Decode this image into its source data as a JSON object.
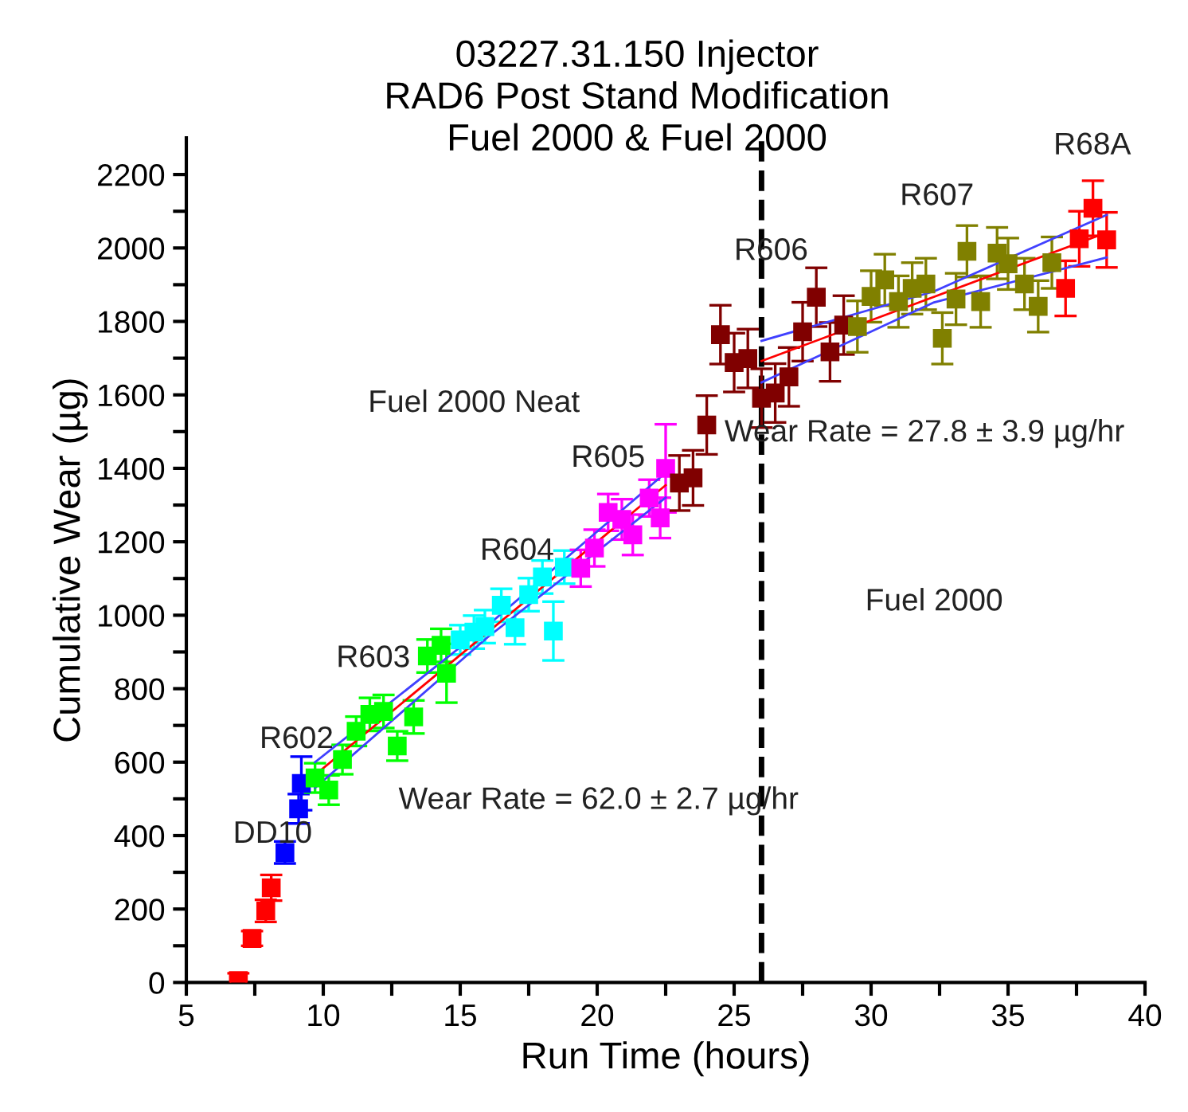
{
  "chart_data": {
    "type": "scatter",
    "title": "03227.31.150 Injector\nRAD6 Post Stand Modification\nFuel 2000 & Fuel 2000",
    "xlabel": "Run Time (hours)",
    "ylabel": "Cumulative Wear (µg)",
    "marker": "square",
    "grid": false,
    "legend": false,
    "xlim": [
      5,
      40
    ],
    "ylim": [
      0,
      2300
    ],
    "xticks": [
      5,
      {
        "value": 7.5,
        "label": null
      },
      10,
      {
        "value": 12.5,
        "label": null
      },
      15,
      {
        "value": 17.5,
        "label": null
      },
      20,
      {
        "value": 22.5,
        "label": null
      },
      25,
      {
        "value": 27.5,
        "label": null
      },
      30,
      {
        "value": 32.5,
        "label": null
      },
      35,
      {
        "value": 37.5,
        "label": null
      },
      40
    ],
    "yticks": [
      0,
      {
        "value": 100,
        "label": null
      },
      200,
      {
        "value": 300,
        "label": null
      },
      400,
      {
        "value": 500,
        "label": null
      },
      600,
      {
        "value": 700,
        "label": null
      },
      800,
      {
        "value": 900,
        "label": null
      },
      1000,
      {
        "value": 1100,
        "label": null
      },
      1200,
      {
        "value": 1300,
        "label": null
      },
      1400,
      {
        "value": 1500,
        "label": null
      },
      1600,
      {
        "value": 1700,
        "label": null
      },
      1800,
      {
        "value": 1900,
        "label": null
      },
      2000,
      {
        "value": 2100,
        "label": null
      },
      2200
    ],
    "series": [
      {
        "color": "#ff0000",
        "x": [
          6.9,
          7.4,
          7.9,
          8.1
        ],
        "values": [
          5,
          120,
          195,
          258
        ],
        "errors": [
          20,
          20,
          30,
          35
        ]
      },
      {
        "color": "#0000ff",
        "x": [
          8.6,
          9.1,
          9.2
        ],
        "values": [
          354,
          473,
          542
        ],
        "errors": [
          30,
          40,
          73
        ]
      },
      {
        "color": "#00ff00",
        "x": [
          9.7,
          10.2,
          10.7,
          11.2,
          11.7,
          12.2,
          12.7,
          13.3,
          13.8,
          14.3,
          14.5
        ],
        "values": [
          557,
          524,
          607,
          684,
          730,
          738,
          644,
          723,
          889,
          918,
          842
        ],
        "errors": [
          40,
          40,
          40,
          40,
          45,
          45,
          40,
          45,
          45,
          45,
          80
        ]
      },
      {
        "color": "#00ffff",
        "x": [
          15.0,
          15.5,
          15.9,
          16.5,
          17.0,
          17.5,
          18.0,
          18.4,
          18.8
        ],
        "values": [
          933,
          954,
          969,
          1027,
          966,
          1056,
          1104,
          957,
          1131
        ],
        "errors": [
          40,
          45,
          45,
          45,
          45,
          45,
          45,
          80,
          45
        ]
      },
      {
        "color": "#ff00ff",
        "x": [
          19.4,
          19.9,
          20.4,
          20.9,
          21.3,
          21.9,
          22.3,
          22.5
        ],
        "values": [
          1128,
          1183,
          1280,
          1261,
          1219,
          1319,
          1265,
          1400
        ],
        "errors": [
          50,
          50,
          50,
          55,
          55,
          50,
          55,
          120
        ]
      },
      {
        "color": "#800000",
        "x": [
          23.0,
          23.5,
          24.0,
          24.5,
          25.0,
          25.5,
          26.0,
          26.5,
          27.0,
          27.5,
          28.0,
          28.5,
          29.0
        ],
        "values": [
          1360,
          1374,
          1518,
          1764,
          1688,
          1699,
          1591,
          1605,
          1649,
          1772,
          1866,
          1717,
          1790
        ],
        "errors": [
          75,
          75,
          80,
          80,
          80,
          80,
          80,
          80,
          80,
          80,
          80,
          80,
          80
        ]
      },
      {
        "color": "#808000",
        "x": [
          29.5,
          30.0,
          30.5,
          31.0,
          31.5,
          32.0,
          32.6,
          33.1,
          33.5,
          34.0,
          34.6,
          35.0,
          35.6,
          36.1,
          36.6
        ],
        "values": [
          1786,
          1868,
          1913,
          1854,
          1890,
          1902,
          1754,
          1861,
          1991,
          1854,
          1986,
          1957,
          1902,
          1841,
          1960
        ],
        "errors": [
          70,
          70,
          70,
          70,
          70,
          70,
          70,
          70,
          70,
          70,
          70,
          70,
          70,
          70,
          70
        ]
      },
      {
        "color": "#ff0000",
        "x": [
          37.1,
          37.6,
          38.1,
          38.6
        ],
        "values": [
          1890,
          2025,
          2108,
          2022
        ],
        "errors": [
          75,
          75,
          75,
          75
        ]
      },
      {
        "type": "line",
        "marker": "none",
        "color": "#ff0000",
        "x": [
          9.7,
          22.5
        ],
        "values": [
          565,
          1354
        ]
      },
      {
        "type": "line",
        "marker": "none",
        "color": "#4040ff",
        "x": [
          9.7,
          16.0,
          22.5
        ],
        "values": [
          600,
          972,
          1388
        ]
      },
      {
        "type": "line",
        "marker": "none",
        "color": "#4040ff",
        "x": [
          9.7,
          16.0,
          22.5
        ],
        "values": [
          530,
          940,
          1320
        ]
      },
      {
        "type": "line",
        "marker": "none",
        "color": "#ff0000",
        "x": [
          26.0,
          38.6
        ],
        "values": [
          1692,
          2042
        ]
      },
      {
        "type": "line",
        "marker": "none",
        "color": "#4040ff",
        "x": [
          26.0,
          32.3,
          38.6
        ],
        "values": [
          1747,
          1882,
          2090
        ]
      },
      {
        "type": "line",
        "marker": "none",
        "color": "#4040ff",
        "x": [
          26.0,
          32.3,
          38.6
        ],
        "values": [
          1634,
          1852,
          1974
        ]
      }
    ],
    "ref_lines": [
      {
        "axis": "x",
        "value": 26,
        "color": "#000000",
        "line_style": "dashed"
      }
    ],
    "annotations": [
      "DD10",
      "R602",
      "R603",
      "R604",
      "R605",
      "R606",
      "R607",
      "R68A",
      "Fuel 2000 Neat",
      "Wear Rate = 62.0 ± 2.7 µg/hr",
      "Wear Rate = 27.8 ± 3.9 µg/hr",
      "Fuel 2000"
    ]
  }
}
